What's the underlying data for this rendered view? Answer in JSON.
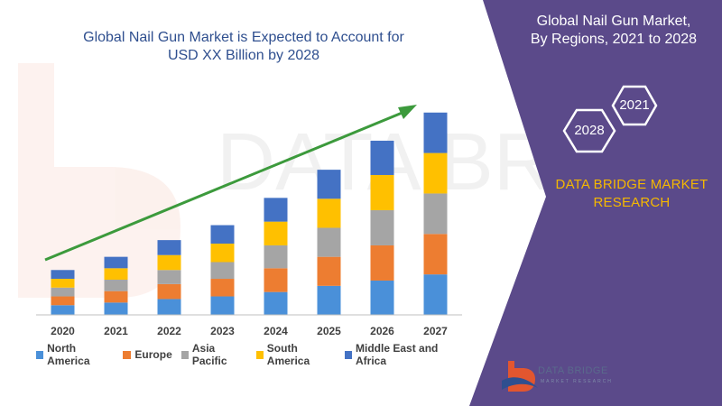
{
  "chart_data": {
    "type": "bar",
    "stacked": true,
    "title": "Global Nail Gun Market is Expected to Account for USD XX Billion by 2028",
    "categories": [
      "2020",
      "2021",
      "2022",
      "2023",
      "2024",
      "2025",
      "2026",
      "2027"
    ],
    "series": [
      {
        "name": "North America",
        "color": "#4a90d9",
        "values": [
          11,
          14,
          18,
          21,
          26,
          33,
          39,
          46
        ]
      },
      {
        "name": "Europe",
        "color": "#ed7d31",
        "values": [
          10,
          13,
          17,
          20,
          27,
          33,
          40,
          46
        ]
      },
      {
        "name": "Asia Pacific",
        "color": "#a5a5a5",
        "values": [
          10,
          13,
          16,
          19,
          26,
          33,
          40,
          46
        ]
      },
      {
        "name": "South America",
        "color": "#ffc000",
        "values": [
          10,
          13,
          17,
          21,
          27,
          33,
          40,
          46
        ]
      },
      {
        "name": "Middle East and Africa",
        "color": "#4472c4",
        "values": [
          10,
          13,
          17,
          21,
          27,
          33,
          39,
          46
        ]
      }
    ],
    "legend": "bottom",
    "grid": false,
    "trend_arrow": true,
    "ylim": [
      0,
      240
    ]
  },
  "panel": {
    "title_line1": "Global Nail Gun Market,",
    "title_line2": "By Regions, 2021 to 2028",
    "hex_top": "2021",
    "hex_bottom": "2028",
    "brand_line1": "DATA BRIDGE MARKET",
    "brand_line2": "RESEARCH",
    "logo_text": "DATA BRIDGE",
    "logo_sub": "MARKET RESEARCH",
    "bg_color": "#5b4a8a",
    "brand_color": "#f5b800"
  }
}
